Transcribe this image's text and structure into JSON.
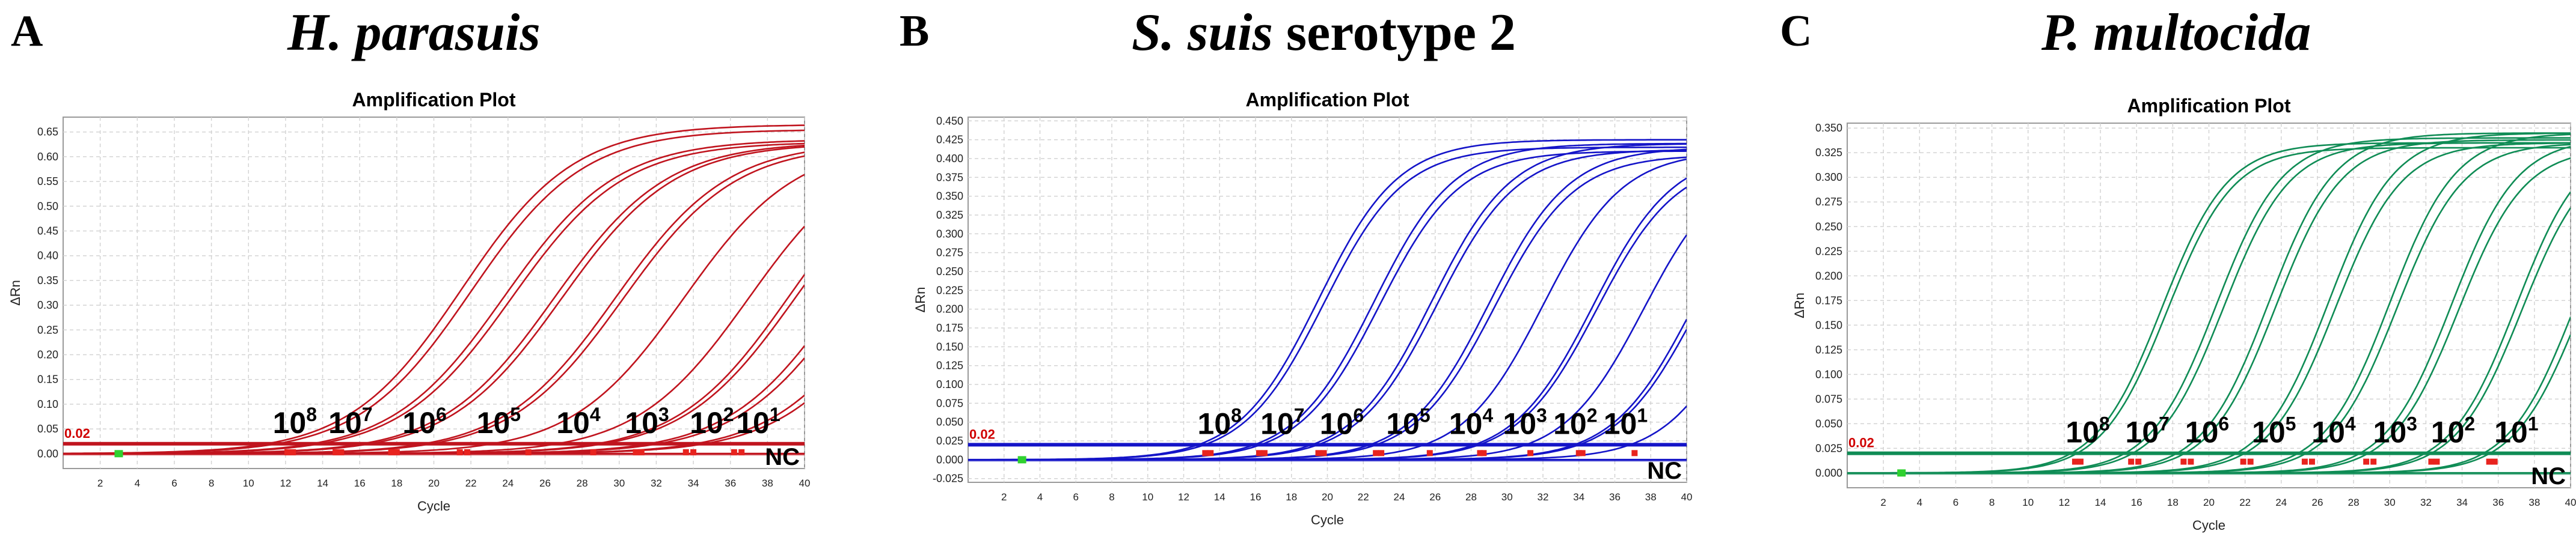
{
  "panels": [
    {
      "letter": "A",
      "organism_italic": "H. parasuis",
      "organism_suffix": "",
      "color": "#c0141e",
      "chart_data": {
        "type": "line",
        "title": "Amplification Plot",
        "xlabel": "Cycle",
        "ylabel": "ΔRn",
        "xlim": [
          0,
          40
        ],
        "ylim": [
          -0.03,
          0.68
        ],
        "x_ticks": [
          2,
          4,
          6,
          8,
          10,
          12,
          14,
          16,
          18,
          20,
          22,
          24,
          26,
          28,
          30,
          32,
          34,
          36,
          38,
          40
        ],
        "y_ticks": [
          "0.00",
          "0.05",
          "0.10",
          "0.15",
          "0.20",
          "0.25",
          "0.30",
          "0.35",
          "0.40",
          "0.45",
          "0.50",
          "0.55",
          "0.60",
          "0.65"
        ],
        "threshold": 0.02,
        "threshold_label": "0.02",
        "nc_label": "NC",
        "dilution_labels": [
          {
            "base": "10",
            "exp": "8",
            "x": 12.5
          },
          {
            "base": "10",
            "exp": "7",
            "x": 15.5
          },
          {
            "base": "10",
            "exp": "6",
            "x": 19.5
          },
          {
            "base": "10",
            "exp": "5",
            "x": 23.5
          },
          {
            "base": "10",
            "exp": "4",
            "x": 27.8
          },
          {
            "base": "10",
            "exp": "3",
            "x": 31.5
          },
          {
            "base": "10",
            "exp": "2",
            "x": 35.0
          },
          {
            "base": "10",
            "exp": "1",
            "x": 37.5
          }
        ],
        "series": [
          {
            "midpoint": 21.5,
            "plateau": 0.665,
            "slope": 0.33,
            "ct": 12.1
          },
          {
            "midpoint": 22.0,
            "plateau": 0.655,
            "slope": 0.33,
            "ct": 12.4
          },
          {
            "midpoint": 23.8,
            "plateau": 0.635,
            "slope": 0.33,
            "ct": 14.7
          },
          {
            "midpoint": 24.2,
            "plateau": 0.63,
            "slope": 0.33,
            "ct": 15.0
          },
          {
            "midpoint": 26.5,
            "plateau": 0.63,
            "slope": 0.33,
            "ct": 17.7
          },
          {
            "midpoint": 26.9,
            "plateau": 0.628,
            "slope": 0.33,
            "ct": 18.0
          },
          {
            "midpoint": 29.8,
            "plateau": 0.63,
            "slope": 0.33,
            "ct": 21.4
          },
          {
            "midpoint": 30.2,
            "plateau": 0.625,
            "slope": 0.33,
            "ct": 21.8
          },
          {
            "midpoint": 33.5,
            "plateau": 0.63,
            "slope": 0.33,
            "ct": 25.1
          },
          {
            "midpoint": 37.0,
            "plateau": 0.63,
            "slope": 0.33,
            "ct": 28.6
          },
          {
            "midpoint": 39.2,
            "plateau": 0.64,
            "slope": 0.33,
            "ct": 30.9
          },
          {
            "midpoint": 39.5,
            "plateau": 0.63,
            "slope": 0.33,
            "ct": 31.2
          },
          {
            "midpoint": 42.0,
            "plateau": 0.64,
            "slope": 0.33,
            "ct": 33.6
          },
          {
            "midpoint": 42.4,
            "plateau": 0.62,
            "slope": 0.33,
            "ct": 34.0
          },
          {
            "midpoint": 44.5,
            "plateau": 0.64,
            "slope": 0.33,
            "ct": 36.2
          },
          {
            "midpoint": 44.9,
            "plateau": 0.62,
            "slope": 0.33,
            "ct": 36.6
          }
        ]
      }
    },
    {
      "letter": "B",
      "organism_italic": "S. suis",
      "organism_suffix": " serotype 2",
      "color": "#1414c8",
      "chart_data": {
        "type": "line",
        "title": "Amplification Plot",
        "xlabel": "Cycle",
        "ylabel": "ΔRn",
        "xlim": [
          0,
          40
        ],
        "ylim": [
          -0.03,
          0.455
        ],
        "x_ticks": [
          2,
          4,
          6,
          8,
          10,
          12,
          14,
          16,
          18,
          20,
          22,
          24,
          26,
          28,
          30,
          32,
          34,
          36,
          38,
          40
        ],
        "y_ticks": [
          "-0.025",
          "0.000",
          "0.025",
          "0.050",
          "0.075",
          "0.100",
          "0.125",
          "0.150",
          "0.175",
          "0.200",
          "0.225",
          "0.250",
          "0.275",
          "0.300",
          "0.325",
          "0.350",
          "0.375",
          "0.400",
          "0.425",
          "0.450"
        ],
        "threshold": 0.02,
        "threshold_label": "0.02",
        "nc_label": "NC",
        "dilution_labels": [
          {
            "base": "10",
            "exp": "8",
            "x": 14.0
          },
          {
            "base": "10",
            "exp": "7",
            "x": 17.5
          },
          {
            "base": "10",
            "exp": "6",
            "x": 20.8
          },
          {
            "base": "10",
            "exp": "5",
            "x": 24.5
          },
          {
            "base": "10",
            "exp": "4",
            "x": 28.0
          },
          {
            "base": "10",
            "exp": "3",
            "x": 31.0
          },
          {
            "base": "10",
            "exp": "2",
            "x": 33.8
          },
          {
            "base": "10",
            "exp": "1",
            "x": 36.6
          }
        ],
        "series": [
          {
            "midpoint": 19.5,
            "plateau": 0.425,
            "slope": 0.45,
            "ct": 13.2
          },
          {
            "midpoint": 19.8,
            "plateau": 0.415,
            "slope": 0.45,
            "ct": 13.5
          },
          {
            "midpoint": 22.6,
            "plateau": 0.42,
            "slope": 0.45,
            "ct": 16.2
          },
          {
            "midpoint": 22.9,
            "plateau": 0.41,
            "slope": 0.45,
            "ct": 16.5
          },
          {
            "midpoint": 25.8,
            "plateau": 0.42,
            "slope": 0.45,
            "ct": 19.5
          },
          {
            "midpoint": 26.1,
            "plateau": 0.412,
            "slope": 0.45,
            "ct": 19.8
          },
          {
            "midpoint": 29.0,
            "plateau": 0.415,
            "slope": 0.45,
            "ct": 22.7
          },
          {
            "midpoint": 29.3,
            "plateau": 0.405,
            "slope": 0.45,
            "ct": 23.0
          },
          {
            "midpoint": 32.0,
            "plateau": 0.41,
            "slope": 0.45,
            "ct": 25.7
          },
          {
            "midpoint": 34.8,
            "plateau": 0.41,
            "slope": 0.45,
            "ct": 28.5
          },
          {
            "midpoint": 35.0,
            "plateau": 0.4,
            "slope": 0.45,
            "ct": 28.7
          },
          {
            "midpoint": 37.6,
            "plateau": 0.4,
            "slope": 0.45,
            "ct": 31.3
          },
          {
            "midpoint": 40.3,
            "plateau": 0.4,
            "slope": 0.45,
            "ct": 34.0
          },
          {
            "midpoint": 40.5,
            "plateau": 0.39,
            "slope": 0.45,
            "ct": 34.2
          },
          {
            "midpoint": 43.4,
            "plateau": 0.4,
            "slope": 0.45,
            "ct": 37.1
          }
        ]
      }
    },
    {
      "letter": "C",
      "organism_italic": "P. multocida",
      "organism_suffix": "",
      "color": "#0f8c55",
      "chart_data": {
        "type": "line",
        "title": "Amplification Plot",
        "xlabel": "Cycle",
        "ylabel": "ΔRn",
        "xlim": [
          0,
          40
        ],
        "ylim": [
          -0.015,
          0.355
        ],
        "x_ticks": [
          2,
          4,
          6,
          8,
          10,
          12,
          14,
          16,
          18,
          20,
          22,
          24,
          26,
          28,
          30,
          32,
          34,
          36,
          38,
          40
        ],
        "y_ticks": [
          "0.000",
          "0.025",
          "0.050",
          "0.075",
          "0.100",
          "0.125",
          "0.150",
          "0.175",
          "0.200",
          "0.225",
          "0.250",
          "0.275",
          "0.300",
          "0.325",
          "0.350"
        ],
        "threshold": 0.02,
        "threshold_label": "0.02",
        "nc_label": "NC",
        "dilution_labels": [
          {
            "base": "10",
            "exp": "8",
            "x": 13.3
          },
          {
            "base": "10",
            "exp": "7",
            "x": 16.6
          },
          {
            "base": "10",
            "exp": "6",
            "x": 19.9
          },
          {
            "base": "10",
            "exp": "5",
            "x": 23.6
          },
          {
            "base": "10",
            "exp": "4",
            "x": 26.9
          },
          {
            "base": "10",
            "exp": "3",
            "x": 30.3
          },
          {
            "base": "10",
            "exp": "2",
            "x": 33.5
          },
          {
            "base": "10",
            "exp": "1",
            "x": 37.0
          }
        ],
        "series": [
          {
            "midpoint": 17.4,
            "plateau": 0.335,
            "slope": 0.55,
            "ct": 12.6
          },
          {
            "midpoint": 17.7,
            "plateau": 0.33,
            "slope": 0.55,
            "ct": 12.9
          },
          {
            "midpoint": 20.4,
            "plateau": 0.34,
            "slope": 0.55,
            "ct": 15.7
          },
          {
            "midpoint": 20.8,
            "plateau": 0.335,
            "slope": 0.55,
            "ct": 16.1
          },
          {
            "midpoint": 23.3,
            "plateau": 0.345,
            "slope": 0.55,
            "ct": 18.6
          },
          {
            "midpoint": 23.7,
            "plateau": 0.338,
            "slope": 0.55,
            "ct": 19.0
          },
          {
            "midpoint": 26.6,
            "plateau": 0.345,
            "slope": 0.55,
            "ct": 21.9
          },
          {
            "midpoint": 27.0,
            "plateau": 0.335,
            "slope": 0.55,
            "ct": 22.3
          },
          {
            "midpoint": 30.0,
            "plateau": 0.345,
            "slope": 0.55,
            "ct": 25.3
          },
          {
            "midpoint": 30.4,
            "plateau": 0.335,
            "slope": 0.55,
            "ct": 25.7
          },
          {
            "midpoint": 33.4,
            "plateau": 0.34,
            "slope": 0.55,
            "ct": 28.7
          },
          {
            "midpoint": 33.8,
            "plateau": 0.33,
            "slope": 0.55,
            "ct": 29.1
          },
          {
            "midpoint": 37.0,
            "plateau": 0.34,
            "slope": 0.55,
            "ct": 32.3
          },
          {
            "midpoint": 37.3,
            "plateau": 0.33,
            "slope": 0.55,
            "ct": 32.6
          },
          {
            "midpoint": 40.2,
            "plateau": 0.335,
            "slope": 0.55,
            "ct": 35.5
          },
          {
            "midpoint": 40.5,
            "plateau": 0.325,
            "slope": 0.55,
            "ct": 35.8
          }
        ]
      }
    }
  ]
}
